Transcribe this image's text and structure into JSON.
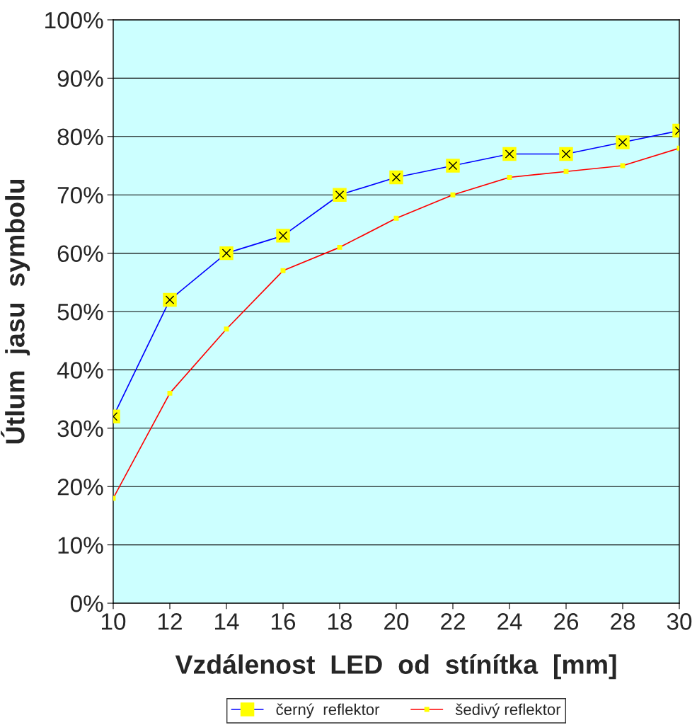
{
  "chart_data": {
    "type": "line",
    "xlabel": "Vzdálenost  LED  od  stínítka  [mm]",
    "ylabel": "Útlum  jasu  symbolu",
    "x": [
      10,
      12,
      14,
      16,
      18,
      20,
      22,
      24,
      26,
      28,
      30
    ],
    "series": [
      {
        "name": "černý  reflektor",
        "color": "#0000ff",
        "marker": "square",
        "values": [
          32,
          52,
          60,
          63,
          70,
          73,
          75,
          77,
          77,
          79,
          81
        ]
      },
      {
        "name": "šedivý reflektor",
        "color": "#ff0000",
        "marker": "square",
        "values": [
          18,
          36,
          47,
          57,
          61,
          66,
          70,
          73,
          74,
          75,
          78
        ]
      }
    ],
    "xlim": [
      10,
      30
    ],
    "xticks": [
      10,
      12,
      14,
      16,
      18,
      20,
      22,
      24,
      26,
      28,
      30
    ],
    "ylim": [
      0,
      100
    ],
    "yticks": [
      {
        "value": 0,
        "label": "0%"
      },
      {
        "value": 10,
        "label": "10%"
      },
      {
        "value": 20,
        "label": "20%"
      },
      {
        "value": 30,
        "label": "30%"
      },
      {
        "value": 40,
        "label": "40%"
      },
      {
        "value": 50,
        "label": "50%"
      },
      {
        "value": 60,
        "label": "60%"
      },
      {
        "value": 70,
        "label": "70%"
      },
      {
        "value": 80,
        "label": "80%"
      },
      {
        "value": 90,
        "label": "90%"
      },
      {
        "value": 100,
        "label": "100%"
      }
    ],
    "grid": "y",
    "legend": "bottom",
    "line_style": "solid"
  }
}
